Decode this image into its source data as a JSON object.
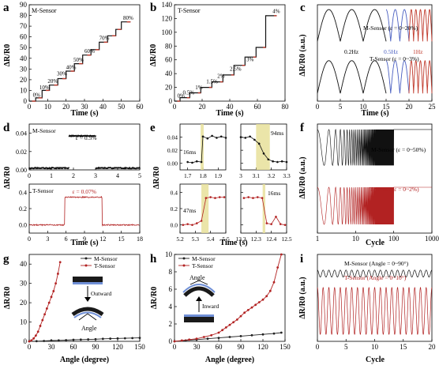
{
  "chart_data": [
    {
      "panel": "a",
      "type": "line",
      "xlabel": "Time (s)",
      "ylabel": "ΔR/R0",
      "xlim": [
        0,
        60
      ],
      "ylim": [
        0,
        90
      ],
      "xticks": [
        0,
        10,
        20,
        30,
        40,
        50,
        60
      ],
      "yticks": [
        0,
        10,
        20,
        30,
        40,
        50,
        60,
        70,
        80,
        90
      ],
      "legend": "M-Sensor",
      "color": "#111111",
      "x": [
        0,
        3.5,
        3.5,
        7,
        7,
        11,
        11,
        15.5,
        15.5,
        20,
        20,
        24.5,
        24.5,
        29,
        29,
        33.5,
        33.5,
        38,
        38,
        42.5,
        42.5,
        47,
        47,
        50,
        50,
        55
      ],
      "y": [
        0,
        0,
        3,
        3,
        10,
        10,
        15,
        15,
        21,
        21,
        28,
        28,
        35,
        35,
        43,
        43,
        48,
        48,
        55,
        55,
        61,
        61,
        67,
        67,
        74,
        74
      ],
      "annotations": [
        {
          "text": "0%",
          "x": 2,
          "y": 4
        },
        {
          "text": "10%",
          "x": 5.5,
          "y": 11
        },
        {
          "text": "20%",
          "x": 10,
          "y": 17
        },
        {
          "text": "30%",
          "x": 15,
          "y": 24
        },
        {
          "text": "40%",
          "x": 20,
          "y": 30
        },
        {
          "text": "50%",
          "x": 24,
          "y": 37
        },
        {
          "text": "60%",
          "x": 30,
          "y": 45
        },
        {
          "text": "70%",
          "x": 38,
          "y": 57
        },
        {
          "text": "80%",
          "x": 51,
          "y": 76
        }
      ]
    },
    {
      "panel": "b",
      "type": "line",
      "xlabel": "Time (s)",
      "ylabel": "ΔR/R0",
      "xlim": [
        0,
        80
      ],
      "ylim": [
        0,
        140
      ],
      "xticks": [
        0,
        20,
        40,
        60,
        80
      ],
      "yticks": [
        0,
        20,
        40,
        60,
        80,
        100,
        120,
        140
      ],
      "legend": "T-Sensor",
      "color": "#111111",
      "x": [
        0,
        4,
        4,
        11,
        11,
        19,
        19,
        27,
        27,
        35,
        35,
        43,
        43,
        51,
        51,
        59,
        59,
        66,
        66,
        74
      ],
      "y": [
        0,
        0,
        5,
        5,
        12,
        12,
        20,
        20,
        28,
        28,
        38,
        38,
        52,
        52,
        64,
        64,
        78,
        78,
        124,
        124
      ],
      "annotations": [
        {
          "text": "0%",
          "x": 2,
          "y": 5
        },
        {
          "text": "0.5%",
          "x": 6,
          "y": 10
        },
        {
          "text": "1%",
          "x": 15,
          "y": 17
        },
        {
          "text": "1.5%",
          "x": 23,
          "y": 26
        },
        {
          "text": "2%",
          "x": 31,
          "y": 34
        },
        {
          "text": "2.5%",
          "x": 40,
          "y": 44
        },
        {
          "text": "3%",
          "x": 52,
          "y": 58
        },
        {
          "text": "4%",
          "x": 71,
          "y": 128
        }
      ]
    },
    {
      "panel": "c",
      "type": "line",
      "xlabel": "Time (s)",
      "ylabel": "ΔR/R0 (a.u.)",
      "xlim": [
        0,
        25
      ],
      "xticks": [
        0,
        5,
        10,
        15,
        20,
        25
      ],
      "series": [
        {
          "name": "M-Sensor (ε = 0~20%)",
          "offset": "top"
        },
        {
          "name": "T-Sensor (ε = 0~3%)",
          "offset": "bottom"
        }
      ],
      "segments": [
        {
          "label": "0.2Hz",
          "color": "#111111",
          "x_range": [
            0,
            15
          ],
          "freq": 0.2
        },
        {
          "label": "0.5Hz",
          "color": "#4a5fc1",
          "x_range": [
            15,
            20
          ],
          "freq": 0.5
        },
        {
          "label": "1Hz",
          "color": "#c0392b",
          "x_range": [
            20,
            25
          ],
          "freq": 1
        }
      ]
    },
    {
      "panel": "d",
      "type": "line",
      "subplots": [
        {
          "legend": "M-Sensor",
          "annotation": "ε = 0.5%",
          "xlim": [
            0,
            5
          ],
          "xticks": [
            0,
            1,
            2,
            3,
            4,
            5
          ],
          "ylim": [
            0,
            0.05
          ],
          "yticks": [
            0.0,
            0.02,
            0.04
          ],
          "color": "#111111",
          "x": [
            0,
            1.8,
            1.8,
            3.0,
            3.0,
            5
          ],
          "y": [
            0.002,
            0.002,
            0.037,
            0.037,
            0.002,
            0.002
          ]
        },
        {
          "legend": "T-Sensor",
          "annotation": "ε = 0.07%",
          "xlim": [
            0,
            18
          ],
          "xticks": [
            0,
            3,
            6,
            9,
            12,
            15,
            18
          ],
          "ylim": [
            -0.1,
            0.5
          ],
          "yticks": [
            0.0,
            0.2,
            0.4
          ],
          "color": "#b22222",
          "x": [
            0,
            5.8,
            5.8,
            11.9,
            11.9,
            18
          ],
          "y": [
            0,
            0,
            0.34,
            0.34,
            0,
            0
          ]
        }
      ],
      "xlabel": "Time (s)",
      "ylabel": "ΔR/R0"
    },
    {
      "panel": "e",
      "type": "line",
      "xlabel": "Time (s)",
      "ylabel": "ΔR/R0",
      "subplots": [
        {
          "annotation": "16ms",
          "xlim": [
            1.65,
            1.95
          ],
          "xticks": [
            1.7,
            1.8,
            1.9
          ],
          "ylim": [
            -0.01,
            0.06
          ],
          "yticks": [
            0.0,
            0.02,
            0.04
          ],
          "color": "#111111",
          "x": [
            1.7,
            1.73,
            1.76,
            1.79,
            1.8,
            1.83,
            1.86,
            1.89,
            1.92,
            1.95
          ],
          "y": [
            0.002,
            0.001,
            0.003,
            0.002,
            0.041,
            0.038,
            0.042,
            0.039,
            0.041,
            0.039
          ]
        },
        {
          "annotation": "94ms",
          "xlim": [
            3.0,
            3.3
          ],
          "xticks": [
            3.0,
            3.1,
            3.2,
            3.3
          ],
          "ylim": [
            -0.01,
            0.06
          ],
          "yticks": [
            0.0,
            0.02,
            0.04
          ],
          "color": "#111111",
          "x": [
            3.0,
            3.03,
            3.06,
            3.09,
            3.12,
            3.15,
            3.18,
            3.21,
            3.24,
            3.27,
            3.3
          ],
          "y": [
            0.04,
            0.039,
            0.041,
            0.036,
            0.03,
            0.015,
            0.006,
            0.003,
            0.002,
            0.003,
            0.002
          ]
        },
        {
          "annotation": "47ms",
          "xlim": [
            5.2,
            5.5
          ],
          "xticks": [
            5.2,
            5.3,
            5.4,
            5.5
          ],
          "ylim": [
            -0.1,
            0.5
          ],
          "yticks": [
            0.0,
            0.2,
            0.4
          ],
          "color": "#b22222",
          "x": [
            5.22,
            5.25,
            5.28,
            5.31,
            5.34,
            5.37,
            5.4,
            5.43,
            5.46,
            5.49
          ],
          "y": [
            0.0,
            0.01,
            0.0,
            0.02,
            0.05,
            0.33,
            0.34,
            0.33,
            0.34,
            0.34
          ]
        },
        {
          "annotation": "16ms",
          "xlim": [
            12.2,
            12.5
          ],
          "xticks": [
            12.2,
            12.3,
            12.4,
            12.5
          ],
          "ylim": [
            -0.1,
            0.5
          ],
          "yticks": [
            0.0,
            0.2,
            0.4
          ],
          "color": "#b22222",
          "x": [
            12.22,
            12.25,
            12.28,
            12.31,
            12.34,
            12.37,
            12.4,
            12.43,
            12.46,
            12.49
          ],
          "y": [
            0.33,
            0.34,
            0.33,
            0.34,
            0.33,
            0.02,
            0.01,
            0.1,
            0.01,
            0.0
          ]
        }
      ]
    },
    {
      "panel": "f",
      "type": "line",
      "xlabel": "Cycle",
      "ylabel": "ΔR/R0 (a.u.)",
      "xscale": "log",
      "xlim": [
        1,
        1000
      ],
      "xticks": [
        1,
        10,
        100,
        1000
      ],
      "series": [
        {
          "name": "M-Sensor (ε = 0~50%)",
          "color": "#111111",
          "offset": "top"
        },
        {
          "name": "T-Sensor (ε = 0~2%)",
          "color": "#b22222",
          "offset": "bottom"
        }
      ]
    },
    {
      "panel": "g",
      "type": "line",
      "xlabel": "Angle (degree)",
      "ylabel": "ΔR/R0",
      "xlim": [
        0,
        150
      ],
      "ylim": [
        0,
        45
      ],
      "xticks": [
        0,
        30,
        60,
        90,
        120,
        150
      ],
      "yticks": [
        0,
        10,
        20,
        30,
        40
      ],
      "legend_position": "top-right",
      "inset": {
        "arrow": "Outward",
        "label": "Angle"
      },
      "series": [
        {
          "name": "M-Sensor",
          "color": "#222222",
          "x": [
            0,
            10,
            20,
            30,
            40,
            50,
            60,
            70,
            80,
            90,
            100,
            110,
            120,
            130,
            140,
            150
          ],
          "y": [
            0,
            0.1,
            0.2,
            0.4,
            0.5,
            0.6,
            0.8,
            0.9,
            1.0,
            1.1,
            1.3,
            1.4,
            1.5,
            1.6,
            1.7,
            1.8
          ]
        },
        {
          "name": "T-Sensor",
          "color": "#b22222",
          "x": [
            0,
            3,
            6,
            9,
            12,
            15,
            18,
            21,
            24,
            27,
            30,
            33,
            36,
            39,
            42
          ],
          "y": [
            0,
            0.5,
            1.5,
            3,
            5,
            8,
            11,
            14,
            17,
            20,
            23,
            26,
            30,
            35,
            41
          ]
        }
      ]
    },
    {
      "panel": "h",
      "type": "line",
      "xlabel": "Angle (degree)",
      "ylabel": "ΔR/R0",
      "xlim": [
        0,
        150
      ],
      "ylim": [
        0,
        10
      ],
      "xticks": [
        0,
        30,
        60,
        90,
        120,
        150
      ],
      "yticks": [
        0,
        2,
        4,
        6,
        8,
        10
      ],
      "legend_position": "top-left",
      "inset": {
        "arrow": "Inward",
        "label": "Angle"
      },
      "series": [
        {
          "name": "M-Sensor",
          "color": "#222222",
          "x": [
            0,
            15,
            30,
            45,
            60,
            75,
            90,
            105,
            120,
            135,
            145
          ],
          "y": [
            0,
            0.1,
            0.2,
            0.3,
            0.4,
            0.5,
            0.6,
            0.7,
            0.8,
            0.9,
            1.0
          ]
        },
        {
          "name": "T-Sensor",
          "color": "#b22222",
          "x": [
            0,
            10,
            20,
            30,
            40,
            50,
            60,
            65,
            70,
            75,
            80,
            85,
            90,
            95,
            100,
            105,
            110,
            115,
            120,
            125,
            130,
            135,
            140,
            145
          ],
          "y": [
            0,
            0.1,
            0.2,
            0.3,
            0.5,
            0.7,
            1.0,
            1.3,
            1.6,
            1.9,
            2.2,
            2.5,
            2.9,
            3.3,
            3.6,
            3.9,
            4.2,
            4.5,
            4.8,
            5.2,
            5.8,
            6.8,
            8.5,
            10
          ]
        }
      ]
    },
    {
      "panel": "i",
      "type": "line",
      "xlabel": "Cycle",
      "ylabel": "ΔR/R0 (a.u.)",
      "xlim": [
        0,
        20
      ],
      "xticks": [
        0,
        5,
        10,
        15,
        20
      ],
      "series": [
        {
          "name": "M-Sensor (Angle = 0~90°)",
          "color": "#111111",
          "offset": "top"
        },
        {
          "name": "T-Sensor (Angle = 0~10°)",
          "color": "#b22222",
          "offset": "bottom"
        }
      ]
    }
  ]
}
